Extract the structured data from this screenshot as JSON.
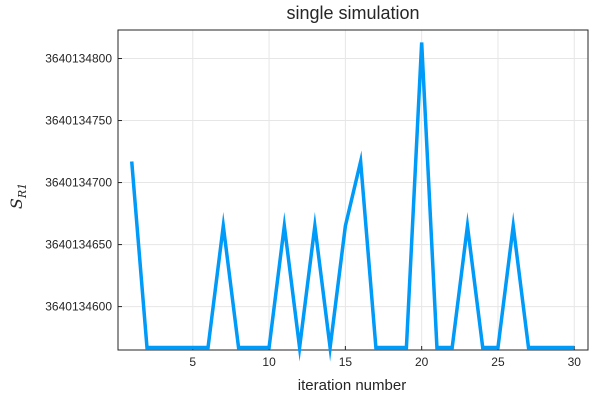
{
  "chart_data": {
    "type": "line",
    "title": "single simulation",
    "xlabel": "iteration number",
    "ylabel": "S",
    "ylabel_subscript": "R1",
    "xlim": [
      0.1,
      30.9
    ],
    "ylim": [
      3640134565,
      3640134823
    ],
    "xticks": [
      5,
      10,
      15,
      20,
      25,
      30
    ],
    "yticks": [
      3640134600,
      3640134650,
      3640134700,
      3640134750,
      3640134800
    ],
    "grid": true,
    "legend": "none",
    "series": [
      {
        "name": "y1",
        "color": "#009af9",
        "x": [
          1,
          2,
          3,
          4,
          5,
          6,
          7,
          8,
          9,
          10,
          11,
          12,
          13,
          14,
          15,
          16,
          17,
          18,
          19,
          20,
          21,
          22,
          23,
          24,
          25,
          26,
          27,
          28,
          29,
          30
        ],
        "values": [
          3640134717,
          3640134567,
          3640134567,
          3640134567,
          3640134567,
          3640134567,
          3640134665,
          3640134567,
          3640134567,
          3640134567,
          3640134665,
          3640134567,
          3640134665,
          3640134567,
          3640134665,
          3640134717,
          3640134567,
          3640134567,
          3640134567,
          3640134813,
          3640134567,
          3640134567,
          3640134665,
          3640134567,
          3640134567,
          3640134665,
          3640134567,
          3640134567,
          3640134567,
          3640134567
        ]
      }
    ]
  }
}
